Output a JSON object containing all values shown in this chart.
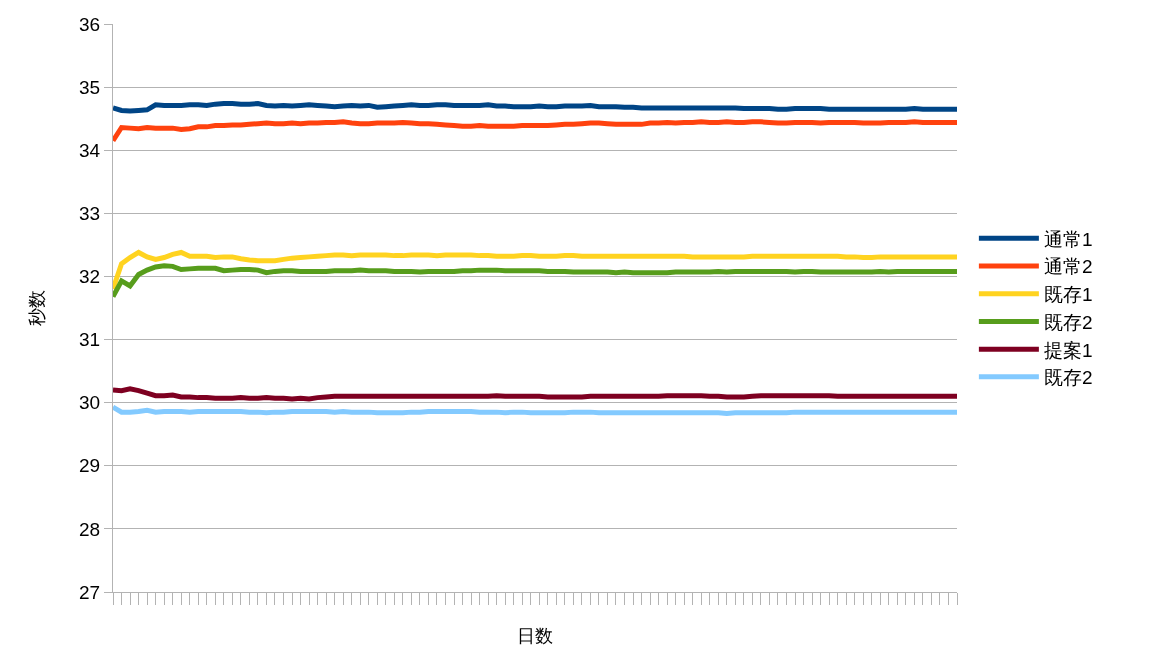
{
  "chart_data": {
    "type": "line",
    "xlabel": "日数",
    "ylabel": "秒数",
    "categories": [
      null,
      null,
      null,
      null,
      null,
      null,
      null,
      null,
      null,
      null,
      null,
      null,
      null,
      null,
      null,
      null,
      null,
      null,
      null,
      null,
      null,
      null,
      null,
      null,
      null,
      null,
      null,
      null,
      null,
      null,
      null,
      null,
      null,
      null,
      null,
      null,
      null,
      null,
      null,
      null,
      null,
      null,
      null,
      null,
      null,
      null,
      null,
      null,
      null,
      null,
      null,
      null,
      null,
      null,
      null,
      null,
      null,
      null,
      null,
      null,
      null,
      null,
      null,
      null,
      null,
      null,
      null,
      null,
      null,
      null,
      null,
      null,
      null,
      null,
      null,
      null,
      null,
      null,
      null,
      null,
      null,
      null,
      null,
      null,
      null,
      null,
      null,
      null,
      null,
      null,
      null,
      null,
      null,
      null,
      null,
      null,
      null,
      null,
      null,
      null
    ],
    "ylim": [
      27,
      36
    ],
    "yticks": [
      27,
      28,
      29,
      30,
      31,
      32,
      33,
      34,
      35,
      36
    ],
    "grid": "y",
    "legend": "right",
    "series": [
      {
        "name": "通常1",
        "color": "#004586",
        "values": [
          34.67,
          34.63,
          34.62,
          34.63,
          34.64,
          34.72,
          34.71,
          34.71,
          34.71,
          34.72,
          34.72,
          34.71,
          34.73,
          34.74,
          34.74,
          34.73,
          34.73,
          34.74,
          34.71,
          34.7,
          34.71,
          34.7,
          34.71,
          34.72,
          34.71,
          34.7,
          34.69,
          34.7,
          34.71,
          34.7,
          34.71,
          34.68,
          34.69,
          34.7,
          34.71,
          34.72,
          34.71,
          34.71,
          34.72,
          34.72,
          34.71,
          34.71,
          34.71,
          34.71,
          34.72,
          34.7,
          34.7,
          34.69,
          34.69,
          34.69,
          34.7,
          34.69,
          34.69,
          34.7,
          34.7,
          34.7,
          34.71,
          34.69,
          34.69,
          34.69,
          34.68,
          34.68,
          34.67,
          34.67,
          34.67,
          34.67,
          34.67,
          34.67,
          34.67,
          34.67,
          34.67,
          34.67,
          34.67,
          34.67,
          34.66,
          34.66,
          34.66,
          34.66,
          34.65,
          34.65,
          34.66,
          34.66,
          34.66,
          34.66,
          34.65,
          34.65,
          34.65,
          34.65,
          34.65,
          34.65,
          34.65,
          34.65,
          34.65,
          34.65,
          34.66,
          34.65,
          34.65,
          34.65,
          34.65,
          34.65
        ]
      },
      {
        "name": "通常2",
        "color": "#ff420e",
        "values": [
          34.15,
          34.36,
          34.35,
          34.34,
          34.36,
          34.35,
          34.35,
          34.35,
          34.33,
          34.34,
          34.37,
          34.37,
          34.39,
          34.39,
          34.4,
          34.4,
          34.41,
          34.42,
          34.43,
          34.42,
          34.42,
          34.43,
          34.42,
          34.43,
          34.43,
          34.44,
          34.44,
          34.45,
          34.43,
          34.42,
          34.42,
          34.43,
          34.43,
          34.43,
          34.44,
          34.43,
          34.42,
          34.42,
          34.41,
          34.4,
          34.39,
          34.38,
          34.38,
          34.39,
          34.38,
          34.38,
          34.38,
          34.38,
          34.39,
          34.39,
          34.39,
          34.39,
          34.4,
          34.41,
          34.41,
          34.42,
          34.43,
          34.43,
          34.42,
          34.41,
          34.41,
          34.41,
          34.41,
          34.43,
          34.43,
          34.44,
          34.43,
          34.44,
          34.44,
          34.45,
          34.44,
          34.44,
          34.45,
          34.44,
          34.44,
          34.45,
          34.45,
          34.44,
          34.43,
          34.43,
          34.44,
          34.44,
          34.44,
          34.43,
          34.44,
          34.44,
          34.44,
          34.44,
          34.43,
          34.43,
          34.43,
          34.44,
          34.44,
          34.44,
          34.45,
          34.44,
          34.44,
          34.44,
          34.44,
          34.44
        ]
      },
      {
        "name": "既存1",
        "color": "#ffd320",
        "values": [
          31.8,
          32.2,
          32.3,
          32.38,
          32.31,
          32.27,
          32.3,
          32.35,
          32.38,
          32.32,
          32.32,
          32.32,
          32.3,
          32.31,
          32.31,
          32.28,
          32.26,
          32.25,
          32.25,
          32.25,
          32.27,
          32.29,
          32.3,
          32.31,
          32.32,
          32.33,
          32.34,
          32.34,
          32.33,
          32.34,
          32.34,
          32.34,
          32.34,
          32.33,
          32.33,
          32.34,
          32.34,
          32.34,
          32.33,
          32.34,
          32.34,
          32.34,
          32.34,
          32.33,
          32.33,
          32.32,
          32.32,
          32.32,
          32.33,
          32.33,
          32.32,
          32.32,
          32.32,
          32.33,
          32.33,
          32.32,
          32.32,
          32.32,
          32.32,
          32.32,
          32.32,
          32.32,
          32.32,
          32.32,
          32.32,
          32.32,
          32.32,
          32.32,
          32.31,
          32.31,
          32.31,
          32.31,
          32.31,
          32.31,
          32.31,
          32.32,
          32.32,
          32.32,
          32.32,
          32.32,
          32.32,
          32.32,
          32.32,
          32.32,
          32.32,
          32.32,
          32.31,
          32.31,
          32.3,
          32.3,
          32.31,
          32.31,
          32.31,
          32.31,
          32.31,
          32.31,
          32.31,
          32.31,
          32.31,
          32.31
        ]
      },
      {
        "name": "既存2",
        "color": "#579d1c",
        "values": [
          31.68,
          31.93,
          31.85,
          32.03,
          32.1,
          32.15,
          32.17,
          32.16,
          32.11,
          32.12,
          32.13,
          32.13,
          32.13,
          32.09,
          32.1,
          32.11,
          32.11,
          32.1,
          32.06,
          32.08,
          32.09,
          32.09,
          32.08,
          32.08,
          32.08,
          32.08,
          32.09,
          32.09,
          32.09,
          32.1,
          32.09,
          32.09,
          32.09,
          32.08,
          32.08,
          32.08,
          32.07,
          32.08,
          32.08,
          32.08,
          32.08,
          32.09,
          32.09,
          32.1,
          32.1,
          32.1,
          32.09,
          32.09,
          32.09,
          32.09,
          32.09,
          32.08,
          32.08,
          32.08,
          32.07,
          32.07,
          32.07,
          32.07,
          32.07,
          32.06,
          32.07,
          32.06,
          32.06,
          32.06,
          32.06,
          32.06,
          32.07,
          32.07,
          32.07,
          32.07,
          32.07,
          32.08,
          32.07,
          32.08,
          32.08,
          32.08,
          32.08,
          32.08,
          32.08,
          32.08,
          32.07,
          32.08,
          32.08,
          32.07,
          32.07,
          32.07,
          32.07,
          32.07,
          32.07,
          32.07,
          32.08,
          32.07,
          32.08,
          32.08,
          32.08,
          32.08,
          32.08,
          32.08,
          32.08,
          32.08
        ]
      },
      {
        "name": "提案1",
        "color": "#7e0021",
        "values": [
          30.2,
          30.19,
          30.22,
          30.19,
          30.15,
          30.11,
          30.11,
          30.12,
          30.09,
          30.09,
          30.08,
          30.08,
          30.07,
          30.07,
          30.07,
          30.08,
          30.07,
          30.07,
          30.08,
          30.07,
          30.07,
          30.06,
          30.07,
          30.06,
          30.08,
          30.09,
          30.1,
          30.1,
          30.1,
          30.1,
          30.1,
          30.1,
          30.1,
          30.1,
          30.1,
          30.1,
          30.1,
          30.1,
          30.1,
          30.1,
          30.1,
          30.1,
          30.1,
          30.1,
          30.1,
          30.11,
          30.1,
          30.1,
          30.1,
          30.1,
          30.1,
          30.09,
          30.09,
          30.09,
          30.09,
          30.09,
          30.1,
          30.1,
          30.1,
          30.1,
          30.1,
          30.1,
          30.1,
          30.1,
          30.1,
          30.11,
          30.11,
          30.11,
          30.11,
          30.11,
          30.1,
          30.1,
          30.09,
          30.09,
          30.09,
          30.1,
          30.11,
          30.11,
          30.11,
          30.11,
          30.11,
          30.11,
          30.11,
          30.11,
          30.11,
          30.1,
          30.1,
          30.1,
          30.1,
          30.1,
          30.1,
          30.1,
          30.1,
          30.1,
          30.1,
          30.1,
          30.1,
          30.1,
          30.1,
          30.1
        ]
      },
      {
        "name": "既存2",
        "color": "#83caff",
        "values": [
          29.93,
          29.85,
          29.85,
          29.86,
          29.88,
          29.85,
          29.86,
          29.86,
          29.86,
          29.85,
          29.86,
          29.86,
          29.86,
          29.86,
          29.86,
          29.86,
          29.85,
          29.85,
          29.84,
          29.85,
          29.85,
          29.86,
          29.86,
          29.86,
          29.86,
          29.86,
          29.85,
          29.86,
          29.85,
          29.85,
          29.85,
          29.84,
          29.84,
          29.84,
          29.84,
          29.85,
          29.85,
          29.86,
          29.86,
          29.86,
          29.86,
          29.86,
          29.86,
          29.85,
          29.85,
          29.85,
          29.84,
          29.85,
          29.85,
          29.84,
          29.84,
          29.84,
          29.84,
          29.84,
          29.85,
          29.85,
          29.85,
          29.84,
          29.84,
          29.84,
          29.84,
          29.84,
          29.84,
          29.84,
          29.84,
          29.84,
          29.84,
          29.84,
          29.84,
          29.84,
          29.84,
          29.84,
          29.83,
          29.84,
          29.84,
          29.84,
          29.84,
          29.84,
          29.84,
          29.84,
          29.85,
          29.85,
          29.85,
          29.85,
          29.85,
          29.85,
          29.85,
          29.85,
          29.85,
          29.85,
          29.85,
          29.85,
          29.85,
          29.85,
          29.85,
          29.85,
          29.85,
          29.85,
          29.85,
          29.85
        ]
      }
    ]
  }
}
